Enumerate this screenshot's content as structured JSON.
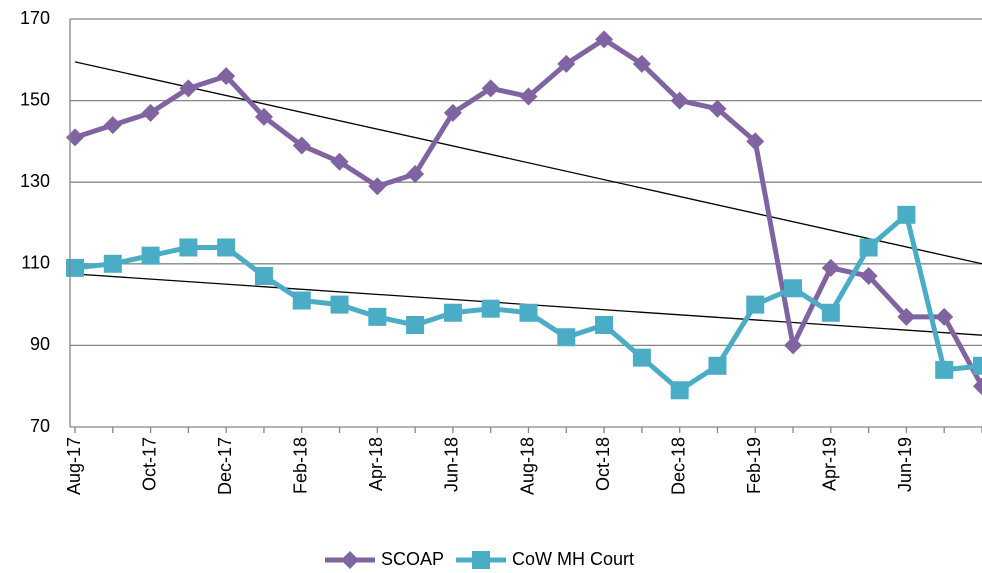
{
  "chart_data": {
    "type": "line",
    "categories": [
      "Aug-17",
      null,
      "Oct-17",
      null,
      "Dec-17",
      null,
      "Feb-18",
      null,
      "Apr-18",
      null,
      "Jun-18",
      null,
      "Aug-18",
      null,
      "Oct-18",
      null,
      "Dec-18",
      null,
      "Feb-19",
      null,
      "Apr-19",
      null,
      "Jun-19",
      null,
      null
    ],
    "series": [
      {
        "name": "SCOAP",
        "color": "#8064a2",
        "marker": "diamond",
        "values": [
          141,
          144,
          147,
          153,
          156,
          146,
          139,
          135,
          129,
          132,
          147,
          153,
          151,
          159,
          165,
          159,
          150,
          148,
          140,
          90,
          109,
          107,
          97,
          97,
          80
        ]
      },
      {
        "name": "CoW MH Court",
        "color": "#4bacc6",
        "marker": "square",
        "values": [
          109,
          110,
          112,
          114,
          114,
          107,
          101,
          100,
          97,
          95,
          98,
          99,
          98,
          92,
          95,
          87,
          79,
          85,
          100,
          104,
          98,
          114,
          122,
          84,
          85
        ]
      }
    ],
    "trendlines": [
      {
        "color": "#000000",
        "values": [
          159.5,
          110
        ]
      },
      {
        "color": "#000000",
        "values": [
          107.5,
          92.5
        ]
      }
    ],
    "ylim": [
      70,
      170
    ],
    "yticks": [
      70,
      90,
      110,
      130,
      150,
      170
    ],
    "grid": true,
    "legend": "bottom"
  }
}
